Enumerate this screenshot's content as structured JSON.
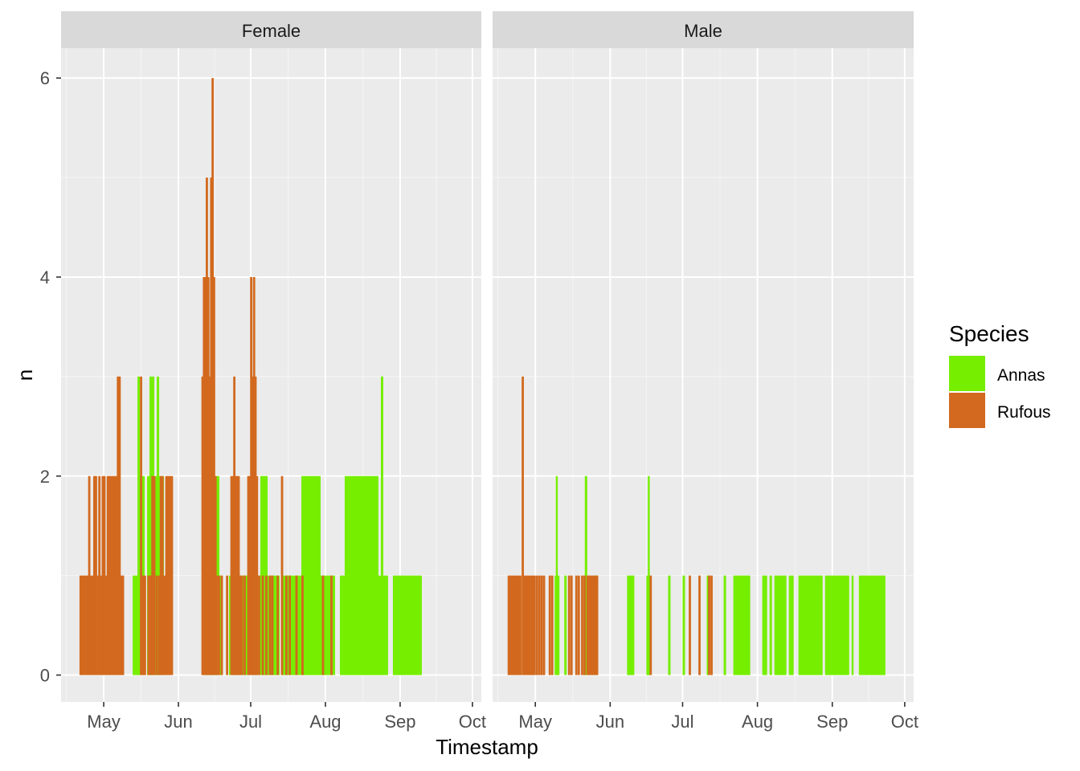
{
  "chart_data": {
    "type": "bar",
    "xlabel": "Timestamp",
    "ylabel": "n",
    "ylim": [
      -0.27,
      6.3
    ],
    "y_ticks": [
      0,
      2,
      4,
      6
    ],
    "y_tick_labels": [
      "0",
      "2",
      "4",
      "6"
    ],
    "x_tick_labels": [
      "May",
      "Jun",
      "Jul",
      "Aug",
      "Sep",
      "Oct"
    ],
    "legend": {
      "title": "Species",
      "position": "right",
      "entries": [
        {
          "name": "Annas",
          "color": "#76EE00"
        },
        {
          "name": "Rufous",
          "color": "#D2691E"
        }
      ]
    },
    "x_unit": "days since May 1",
    "x_tick_days": [
      0,
      31,
      61,
      92,
      123,
      153
    ],
    "xlim": [
      -17.7,
      156.7
    ],
    "panels": [
      {
        "title": "Female",
        "annas_segments": [
          {
            "start": 12,
            "end": 17,
            "n": 1
          },
          {
            "start": 15,
            "end": 17,
            "n": 2
          },
          {
            "start": 14,
            "end": 15,
            "n": 3
          },
          {
            "start": 18,
            "end": 25,
            "n": 1
          },
          {
            "start": 18,
            "end": 25,
            "n": 2
          },
          {
            "start": 19,
            "end": 21,
            "n": 3
          },
          {
            "start": 22,
            "end": 23,
            "n": 3
          },
          {
            "start": 41,
            "end": 49,
            "n": 1
          },
          {
            "start": 42,
            "end": 48,
            "n": 2
          },
          {
            "start": 42,
            "end": 46,
            "n": 3
          },
          {
            "start": 52,
            "end": 61,
            "n": 1
          },
          {
            "start": 62,
            "end": 73,
            "n": 1
          },
          {
            "start": 65,
            "end": 68,
            "n": 2
          },
          {
            "start": 74,
            "end": 96,
            "n": 1
          },
          {
            "start": 82,
            "end": 90,
            "n": 2
          },
          {
            "start": 98,
            "end": 118,
            "n": 1
          },
          {
            "start": 100,
            "end": 114,
            "n": 2
          },
          {
            "start": 115,
            "end": 116,
            "n": 3
          },
          {
            "start": 120,
            "end": 132,
            "n": 1
          }
        ],
        "rufous_bars": [
          {
            "day": -9.6,
            "n": 1
          },
          {
            "day": -8.9,
            "n": 1
          },
          {
            "day": -8.2,
            "n": 1
          },
          {
            "day": -7.5,
            "n": 1
          },
          {
            "day": -6.7,
            "n": 1
          },
          {
            "day": -6.0,
            "n": 2
          },
          {
            "day": -5.3,
            "n": 1
          },
          {
            "day": -4.6,
            "n": 1
          },
          {
            "day": -3.9,
            "n": 2
          },
          {
            "day": -3.2,
            "n": 2
          },
          {
            "day": -2.5,
            "n": 1
          },
          {
            "day": -1.8,
            "n": 2
          },
          {
            "day": -1.1,
            "n": 1
          },
          {
            "day": -0.4,
            "n": 2
          },
          {
            "day": 0.3,
            "n": 2
          },
          {
            "day": 1.0,
            "n": 1
          },
          {
            "day": 1.7,
            "n": 2
          },
          {
            "day": 2.4,
            "n": 2
          },
          {
            "day": 3.1,
            "n": 2
          },
          {
            "day": 3.8,
            "n": 2
          },
          {
            "day": 4.5,
            "n": 2
          },
          {
            "day": 5.2,
            "n": 2
          },
          {
            "day": 5.9,
            "n": 3
          },
          {
            "day": 6.6,
            "n": 3
          },
          {
            "day": 7.3,
            "n": 1
          },
          {
            "day": 8.0,
            "n": 1
          },
          {
            "day": 15.5,
            "n": 3
          },
          {
            "day": 16.3,
            "n": 1
          },
          {
            "day": 17.1,
            "n": 1
          },
          {
            "day": 18.6,
            "n": 1
          },
          {
            "day": 19.4,
            "n": 1
          },
          {
            "day": 20.2,
            "n": 2
          },
          {
            "day": 21.0,
            "n": 2
          },
          {
            "day": 22.0,
            "n": 1
          },
          {
            "day": 23.0,
            "n": 1
          },
          {
            "day": 23.7,
            "n": 2
          },
          {
            "day": 24.4,
            "n": 2
          },
          {
            "day": 25.2,
            "n": 1
          },
          {
            "day": 26.0,
            "n": 2
          },
          {
            "day": 26.7,
            "n": 2
          },
          {
            "day": 27.5,
            "n": 2
          },
          {
            "day": 28.3,
            "n": 2
          },
          {
            "day": 41.0,
            "n": 3
          },
          {
            "day": 41.6,
            "n": 4
          },
          {
            "day": 42.2,
            "n": 4
          },
          {
            "day": 42.8,
            "n": 5
          },
          {
            "day": 43.4,
            "n": 4
          },
          {
            "day": 44.0,
            "n": 3
          },
          {
            "day": 44.6,
            "n": 5
          },
          {
            "day": 45.2,
            "n": 6
          },
          {
            "day": 45.8,
            "n": 4
          },
          {
            "day": 46.4,
            "n": 2
          },
          {
            "day": 47.0,
            "n": 1
          },
          {
            "day": 47.8,
            "n": 1
          },
          {
            "day": 49.0,
            "n": 1
          },
          {
            "day": 51.2,
            "n": 1
          },
          {
            "day": 53.0,
            "n": 2
          },
          {
            "day": 53.6,
            "n": 2
          },
          {
            "day": 54.2,
            "n": 3
          },
          {
            "day": 54.8,
            "n": 2
          },
          {
            "day": 55.4,
            "n": 2
          },
          {
            "day": 56.0,
            "n": 2
          },
          {
            "day": 56.6,
            "n": 1
          },
          {
            "day": 57.4,
            "n": 1
          },
          {
            "day": 58.5,
            "n": 1
          },
          {
            "day": 60.0,
            "n": 2
          },
          {
            "day": 60.6,
            "n": 2
          },
          {
            "day": 61.2,
            "n": 4
          },
          {
            "day": 61.8,
            "n": 3
          },
          {
            "day": 62.4,
            "n": 4
          },
          {
            "day": 63.0,
            "n": 3
          },
          {
            "day": 63.6,
            "n": 2
          },
          {
            "day": 64.5,
            "n": 1
          },
          {
            "day": 66.0,
            "n": 1
          },
          {
            "day": 67.5,
            "n": 1
          },
          {
            "day": 69.0,
            "n": 1
          },
          {
            "day": 70.0,
            "n": 1
          },
          {
            "day": 72.2,
            "n": 1
          },
          {
            "day": 74.0,
            "n": 2
          },
          {
            "day": 75.8,
            "n": 1
          },
          {
            "day": 77.2,
            "n": 1
          },
          {
            "day": 80.0,
            "n": 1
          },
          {
            "day": 82.5,
            "n": 1
          },
          {
            "day": 91.0,
            "n": 1
          },
          {
            "day": 94.5,
            "n": 1
          }
        ]
      },
      {
        "title": "Male",
        "annas_segments": [
          {
            "start": 8,
            "end": 10,
            "n": 1
          },
          {
            "start": 8.5,
            "end": 9,
            "n": 2
          },
          {
            "start": 12,
            "end": 13,
            "n": 1
          },
          {
            "start": 20,
            "end": 23,
            "n": 1
          },
          {
            "start": 20.5,
            "end": 21.5,
            "n": 2
          },
          {
            "start": 24,
            "end": 26,
            "n": 1
          },
          {
            "start": 38,
            "end": 41,
            "n": 1
          },
          {
            "start": 46,
            "end": 48,
            "n": 1
          },
          {
            "start": 46.6,
            "end": 47.1,
            "n": 2
          },
          {
            "start": 55,
            "end": 56,
            "n": 1
          },
          {
            "start": 61,
            "end": 62,
            "n": 1
          },
          {
            "start": 71,
            "end": 72,
            "n": 1
          },
          {
            "start": 78,
            "end": 79,
            "n": 1
          },
          {
            "start": 82,
            "end": 89,
            "n": 1
          },
          {
            "start": 94,
            "end": 96,
            "n": 1
          },
          {
            "start": 97,
            "end": 98,
            "n": 1
          },
          {
            "start": 99,
            "end": 104,
            "n": 1
          },
          {
            "start": 105,
            "end": 107,
            "n": 1
          },
          {
            "start": 109,
            "end": 119,
            "n": 1
          },
          {
            "start": 120,
            "end": 130,
            "n": 1
          },
          {
            "start": 131,
            "end": 131.8,
            "n": 1
          },
          {
            "start": 134,
            "end": 145,
            "n": 1
          }
        ],
        "rufous_bars": [
          {
            "day": -11,
            "n": 1
          },
          {
            "day": -10.2,
            "n": 1
          },
          {
            "day": -9.4,
            "n": 1
          },
          {
            "day": -8.6,
            "n": 1
          },
          {
            "day": -7.8,
            "n": 1
          },
          {
            "day": -7.0,
            "n": 1
          },
          {
            "day": -6.2,
            "n": 1
          },
          {
            "day": -5.2,
            "n": 3
          },
          {
            "day": -4.4,
            "n": 1
          },
          {
            "day": -3.6,
            "n": 1
          },
          {
            "day": -2.8,
            "n": 1
          },
          {
            "day": -2.0,
            "n": 1
          },
          {
            "day": -1.2,
            "n": 1
          },
          {
            "day": -0.4,
            "n": 1
          },
          {
            "day": 0.6,
            "n": 1
          },
          {
            "day": 1.6,
            "n": 1
          },
          {
            "day": 2.6,
            "n": 1
          },
          {
            "day": 3.6,
            "n": 1
          },
          {
            "day": 6.0,
            "n": 1
          },
          {
            "day": 7.0,
            "n": 1
          },
          {
            "day": 14.0,
            "n": 1
          },
          {
            "day": 15.0,
            "n": 1
          },
          {
            "day": 17.0,
            "n": 1
          },
          {
            "day": 18.0,
            "n": 1
          },
          {
            "day": 19.4,
            "n": 1
          },
          {
            "day": 20.4,
            "n": 1
          },
          {
            "day": 21.6,
            "n": 1
          },
          {
            "day": 22.4,
            "n": 1
          },
          {
            "day": 23.2,
            "n": 1
          },
          {
            "day": 24.0,
            "n": 1
          },
          {
            "day": 24.8,
            "n": 1
          },
          {
            "day": 25.6,
            "n": 1
          },
          {
            "day": 47.8,
            "n": 1
          },
          {
            "day": 64.0,
            "n": 1
          },
          {
            "day": 68.0,
            "n": 1
          },
          {
            "day": 72.0,
            "n": 1
          },
          {
            "day": 73.0,
            "n": 1
          }
        ]
      }
    ]
  }
}
